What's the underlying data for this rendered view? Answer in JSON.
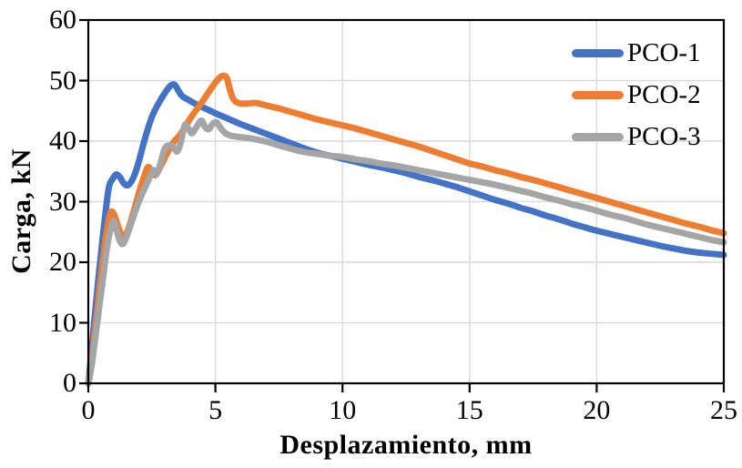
{
  "chart_data": {
    "type": "line",
    "title": "",
    "xlabel": "Desplazamiento, mm",
    "ylabel": "Carga, kN",
    "xlim": [
      0,
      25
    ],
    "ylim": [
      0,
      60
    ],
    "xticks": [
      0,
      5,
      10,
      15,
      20,
      25
    ],
    "yticks": [
      0,
      10,
      20,
      30,
      40,
      50,
      60
    ],
    "grid": true,
    "legend_position": "top-right-inside",
    "colors": {
      "grid": "#D9D9D9",
      "axis": "#000000",
      "text": "#000000"
    },
    "series": [
      {
        "name": "PCO-1",
        "color": "#4472C4",
        "points": [
          [
            0,
            0
          ],
          [
            0.1,
            4
          ],
          [
            0.25,
            11
          ],
          [
            0.4,
            17.5
          ],
          [
            0.55,
            23.5
          ],
          [
            0.7,
            29
          ],
          [
            0.82,
            32.6
          ],
          [
            0.95,
            33.7
          ],
          [
            1.1,
            34.5
          ],
          [
            1.25,
            34
          ],
          [
            1.4,
            33
          ],
          [
            1.55,
            32.7
          ],
          [
            1.7,
            33.4
          ],
          [
            1.85,
            34.8
          ],
          [
            2,
            36.8
          ],
          [
            2.2,
            40
          ],
          [
            2.5,
            44
          ],
          [
            2.8,
            46.5
          ],
          [
            3.05,
            48.2
          ],
          [
            3.25,
            49.2
          ],
          [
            3.4,
            49.3
          ],
          [
            3.55,
            48.3
          ],
          [
            3.7,
            47.4
          ],
          [
            3.9,
            46.9
          ],
          [
            4.2,
            46.2
          ],
          [
            4.6,
            45.4
          ],
          [
            5,
            44.6
          ],
          [
            5.5,
            43.7
          ],
          [
            6,
            42.8
          ],
          [
            6.5,
            42
          ],
          [
            7,
            41.2
          ],
          [
            7.5,
            40.4
          ],
          [
            8,
            39.6
          ],
          [
            8.5,
            38.8
          ],
          [
            9,
            38.1
          ],
          [
            9.5,
            37.6
          ],
          [
            10,
            37.1
          ],
          [
            10.5,
            36.6
          ],
          [
            11,
            36.1
          ],
          [
            11.5,
            35.7
          ],
          [
            12,
            35.2
          ],
          [
            12.5,
            34.7
          ],
          [
            13,
            34.1
          ],
          [
            13.5,
            33.6
          ],
          [
            14,
            33
          ],
          [
            14.5,
            32.4
          ],
          [
            15,
            31.7
          ],
          [
            15.5,
            31
          ],
          [
            16,
            30.3
          ],
          [
            16.5,
            29.7
          ],
          [
            17,
            29
          ],
          [
            17.5,
            28.4
          ],
          [
            18,
            27.7
          ],
          [
            18.5,
            27.1
          ],
          [
            19,
            26.4
          ],
          [
            19.5,
            25.8
          ],
          [
            20,
            25.2
          ],
          [
            20.5,
            24.7
          ],
          [
            21,
            24.2
          ],
          [
            21.5,
            23.7
          ],
          [
            22,
            23.2
          ],
          [
            22.5,
            22.7
          ],
          [
            23,
            22.3
          ],
          [
            23.5,
            21.9
          ],
          [
            24,
            21.6
          ],
          [
            24.5,
            21.4
          ],
          [
            25,
            21.2
          ]
        ]
      },
      {
        "name": "PCO-2",
        "color": "#ED7D31",
        "points": [
          [
            0,
            0
          ],
          [
            0.12,
            3.5
          ],
          [
            0.3,
            10
          ],
          [
            0.45,
            16
          ],
          [
            0.6,
            21.5
          ],
          [
            0.75,
            25.8
          ],
          [
            0.88,
            28.2
          ],
          [
            1,
            28
          ],
          [
            1.15,
            26.2
          ],
          [
            1.3,
            24.6
          ],
          [
            1.42,
            24.2
          ],
          [
            1.6,
            25.8
          ],
          [
            1.8,
            28.6
          ],
          [
            2,
            31.6
          ],
          [
            2.2,
            34.2
          ],
          [
            2.35,
            35.7
          ],
          [
            2.5,
            34.9
          ],
          [
            2.65,
            34.4
          ],
          [
            2.85,
            35.9
          ],
          [
            3.1,
            38
          ],
          [
            3.35,
            39.8
          ],
          [
            3.6,
            41
          ],
          [
            3.8,
            42.3
          ],
          [
            4.1,
            44.3
          ],
          [
            4.45,
            46.3
          ],
          [
            4.8,
            48.5
          ],
          [
            5.1,
            50.2
          ],
          [
            5.3,
            50.8
          ],
          [
            5.45,
            50.4
          ],
          [
            5.55,
            48.8
          ],
          [
            5.7,
            47
          ],
          [
            5.9,
            46.3
          ],
          [
            6.2,
            46.2
          ],
          [
            6.6,
            46.3
          ],
          [
            7,
            45.9
          ],
          [
            7.5,
            45.4
          ],
          [
            8,
            44.8
          ],
          [
            8.5,
            44.2
          ],
          [
            9,
            43.6
          ],
          [
            9.5,
            43.1
          ],
          [
            10,
            42.6
          ],
          [
            10.5,
            42.1
          ],
          [
            11,
            41.5
          ],
          [
            11.5,
            40.9
          ],
          [
            12,
            40.3
          ],
          [
            12.5,
            39.7
          ],
          [
            13,
            39.1
          ],
          [
            13.5,
            38.4
          ],
          [
            14,
            37.7
          ],
          [
            14.5,
            37
          ],
          [
            15,
            36.3
          ],
          [
            15.5,
            35.8
          ],
          [
            16,
            35.2
          ],
          [
            16.5,
            34.7
          ],
          [
            17,
            34.1
          ],
          [
            17.5,
            33.6
          ],
          [
            18,
            33
          ],
          [
            18.5,
            32.4
          ],
          [
            19,
            31.8
          ],
          [
            19.5,
            31.2
          ],
          [
            20,
            30.6
          ],
          [
            20.5,
            30
          ],
          [
            21,
            29.4
          ],
          [
            21.5,
            28.8
          ],
          [
            22,
            28.2
          ],
          [
            22.5,
            27.6
          ],
          [
            23,
            27
          ],
          [
            23.5,
            26.4
          ],
          [
            24,
            25.9
          ],
          [
            24.5,
            25.3
          ],
          [
            25,
            24.8
          ]
        ]
      },
      {
        "name": "PCO-3",
        "color": "#A5A5A5",
        "points": [
          [
            0,
            0
          ],
          [
            0.15,
            3.5
          ],
          [
            0.35,
            10
          ],
          [
            0.55,
            16.5
          ],
          [
            0.72,
            22
          ],
          [
            0.88,
            25.6
          ],
          [
            1,
            26.8
          ],
          [
            1.12,
            25.2
          ],
          [
            1.25,
            23.4
          ],
          [
            1.38,
            23.1
          ],
          [
            1.55,
            24.8
          ],
          [
            1.75,
            27.2
          ],
          [
            1.95,
            29.6
          ],
          [
            2.15,
            31.6
          ],
          [
            2.35,
            33.4
          ],
          [
            2.55,
            35.2
          ],
          [
            2.7,
            34.6
          ],
          [
            2.85,
            36.5
          ],
          [
            3,
            38.7
          ],
          [
            3.15,
            39.3
          ],
          [
            3.35,
            39
          ],
          [
            3.5,
            38.3
          ],
          [
            3.65,
            40
          ],
          [
            3.8,
            42.7
          ],
          [
            3.95,
            42
          ],
          [
            4.08,
            41.3
          ],
          [
            4.25,
            42.3
          ],
          [
            4.45,
            43.4
          ],
          [
            4.6,
            42.3
          ],
          [
            4.75,
            42
          ],
          [
            4.9,
            42.9
          ],
          [
            5.05,
            43.1
          ],
          [
            5.2,
            42.2
          ],
          [
            5.4,
            41.3
          ],
          [
            5.6,
            40.9
          ],
          [
            5.9,
            40.7
          ],
          [
            6.3,
            40.5
          ],
          [
            6.7,
            40.2
          ],
          [
            7.1,
            39.8
          ],
          [
            7.5,
            39.3
          ],
          [
            8,
            38.7
          ],
          [
            8.5,
            38.2
          ],
          [
            9,
            37.9
          ],
          [
            9.5,
            37.6
          ],
          [
            10,
            37.4
          ],
          [
            10.5,
            37
          ],
          [
            11,
            36.7
          ],
          [
            11.5,
            36.3
          ],
          [
            12,
            36
          ],
          [
            12.5,
            35.6
          ],
          [
            13,
            35.2
          ],
          [
            13.5,
            34.8
          ],
          [
            14,
            34.4
          ],
          [
            14.5,
            34
          ],
          [
            15,
            33.6
          ],
          [
            15.5,
            33.2
          ],
          [
            16,
            32.8
          ],
          [
            16.5,
            32.3
          ],
          [
            17,
            31.8
          ],
          [
            17.5,
            31.3
          ],
          [
            18,
            30.7
          ],
          [
            18.5,
            30.2
          ],
          [
            19,
            29.6
          ],
          [
            19.5,
            29.1
          ],
          [
            20,
            28.5
          ],
          [
            20.5,
            27.9
          ],
          [
            21,
            27.4
          ],
          [
            21.5,
            26.8
          ],
          [
            22,
            26.2
          ],
          [
            22.5,
            25.7
          ],
          [
            23,
            25.2
          ],
          [
            23.5,
            24.7
          ],
          [
            24,
            24.2
          ],
          [
            24.5,
            23.7
          ],
          [
            25,
            23.3
          ]
        ]
      }
    ]
  }
}
